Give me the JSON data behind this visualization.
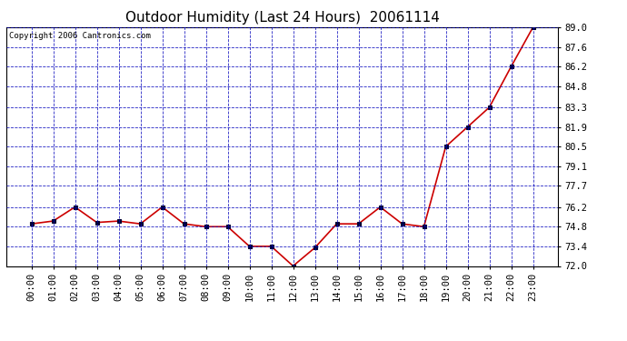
{
  "title": "Outdoor Humidity (Last 24 Hours)  20061114",
  "copyright_text": "Copyright 2006 Cantronics.com",
  "x_labels": [
    "00:00",
    "01:00",
    "02:00",
    "03:00",
    "04:00",
    "05:00",
    "06:00",
    "07:00",
    "08:00",
    "09:00",
    "10:00",
    "11:00",
    "12:00",
    "13:00",
    "14:00",
    "15:00",
    "16:00",
    "17:00",
    "18:00",
    "19:00",
    "20:00",
    "21:00",
    "22:00",
    "23:00"
  ],
  "y_values": [
    75.0,
    75.2,
    76.2,
    75.1,
    75.2,
    75.0,
    76.2,
    75.0,
    74.8,
    74.8,
    73.4,
    73.4,
    72.0,
    73.3,
    75.0,
    75.0,
    76.2,
    75.0,
    74.8,
    80.5,
    81.9,
    83.3,
    86.2,
    89.0
  ],
  "ylim": [
    72.0,
    89.0
  ],
  "yticks": [
    72.0,
    73.4,
    74.8,
    76.2,
    77.7,
    79.1,
    80.5,
    81.9,
    83.3,
    84.8,
    86.2,
    87.6,
    89.0
  ],
  "line_color": "#cc0000",
  "marker_color": "#000033",
  "bg_color": "#ffffff",
  "plot_bg_color": "#ffffff",
  "grid_color": "#0000bb",
  "title_fontsize": 11,
  "tick_fontsize": 7.5,
  "copyright_fontsize": 6.5
}
